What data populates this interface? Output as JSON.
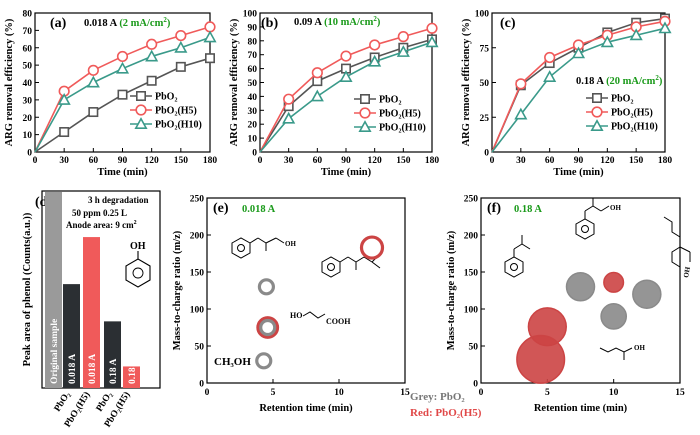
{
  "colors": {
    "pbo2": "#555555",
    "h5": "#f05a5a",
    "h10": "#3a9a8a",
    "accent_green": "#1a9a1a",
    "bar_original": "#9a9a9a",
    "bar_dark": "#2b2f33",
    "bar_red": "#f05a5a",
    "circle_grey": "#8a8a8a",
    "circle_red": "#cc4444"
  },
  "chart_data": [
    {
      "id": "a",
      "type": "line",
      "panel_label": "(a)",
      "condition": {
        "current": "0.018 A",
        "density": "(2 mA/cm",
        "sup": "2",
        "close": ")"
      },
      "xlabel": "Time (min)",
      "ylabel": "ARG removal efficiency (%)",
      "xlim": [
        0,
        180
      ],
      "ylim": [
        0,
        80
      ],
      "xticks": [
        0,
        30,
        60,
        90,
        120,
        150,
        180
      ],
      "yticks": [
        0,
        10,
        20,
        30,
        40,
        50,
        60,
        70,
        80
      ],
      "legend_position": "lower-right",
      "series": [
        {
          "name": "PbO₂",
          "marker": "square",
          "color": "#555555",
          "x": [
            0,
            30,
            60,
            90,
            120,
            150,
            180
          ],
          "values": [
            0,
            11.5,
            23,
            33,
            41,
            49,
            54
          ]
        },
        {
          "name": "PbO₂(H5)",
          "marker": "circle",
          "color": "#f05a5a",
          "x": [
            0,
            30,
            60,
            90,
            120,
            150,
            180
          ],
          "values": [
            0,
            35,
            47,
            55,
            62,
            67,
            72
          ]
        },
        {
          "name": "PbO₂(H10)",
          "marker": "triangle",
          "color": "#3a9a8a",
          "x": [
            0,
            30,
            60,
            90,
            120,
            150,
            180
          ],
          "values": [
            0,
            30,
            40,
            48,
            55,
            60,
            66
          ]
        }
      ]
    },
    {
      "id": "b",
      "type": "line",
      "panel_label": "(b)",
      "condition": {
        "current": "0.09 A",
        "density": "(10 mA/cm",
        "sup": "2",
        "close": ")"
      },
      "xlabel": "Time (min)",
      "ylabel": "ARG removal efficiency (%)",
      "xlim": [
        0,
        180
      ],
      "ylim": [
        0,
        100
      ],
      "xticks": [
        0,
        30,
        60,
        90,
        120,
        150,
        180
      ],
      "yticks": [
        0,
        10,
        20,
        30,
        40,
        50,
        60,
        70,
        80,
        90,
        100
      ],
      "legend_position": "lower-right",
      "series": [
        {
          "name": "PbO₂",
          "marker": "square",
          "color": "#555555",
          "x": [
            0,
            30,
            60,
            90,
            120,
            150,
            180
          ],
          "values": [
            0,
            33,
            51,
            60,
            68,
            75,
            81
          ]
        },
        {
          "name": "PbO₂(H5)",
          "marker": "circle",
          "color": "#f05a5a",
          "x": [
            0,
            30,
            60,
            90,
            120,
            150,
            180
          ],
          "values": [
            0,
            38,
            57,
            69,
            77,
            83,
            89
          ]
        },
        {
          "name": "PbO₂(H10)",
          "marker": "triangle",
          "color": "#3a9a8a",
          "x": [
            0,
            30,
            60,
            90,
            120,
            150,
            180
          ],
          "values": [
            0,
            24,
            40,
            54,
            65,
            72,
            79
          ]
        }
      ]
    },
    {
      "id": "c",
      "type": "line",
      "panel_label": "(c)",
      "condition": {
        "current": "0.18 A",
        "density": "(20 mA/cm",
        "sup": "2",
        "close": ")"
      },
      "xlabel": "Time (min)",
      "ylabel": "ARG removal efficiency (%)",
      "xlim": [
        0,
        180
      ],
      "ylim": [
        0,
        100
      ],
      "xticks": [
        0,
        30,
        60,
        90,
        120,
        150,
        180
      ],
      "yticks": [
        0,
        25,
        50,
        75,
        100
      ],
      "legend_position": "lower-right",
      "series": [
        {
          "name": "PbO₂",
          "marker": "square",
          "color": "#555555",
          "x": [
            0,
            30,
            60,
            90,
            120,
            150,
            180
          ],
          "values": [
            0,
            48,
            64,
            75,
            86,
            93,
            96
          ]
        },
        {
          "name": "PbO₂(H5)",
          "marker": "circle",
          "color": "#f05a5a",
          "x": [
            0,
            30,
            60,
            90,
            120,
            150,
            180
          ],
          "values": [
            0,
            49,
            68,
            77,
            84,
            90,
            94
          ]
        },
        {
          "name": "PbO₂(H10)",
          "marker": "triangle",
          "color": "#3a9a8a",
          "x": [
            0,
            30,
            60,
            90,
            120,
            150,
            180
          ],
          "values": [
            0,
            27,
            54,
            71,
            79,
            84,
            89
          ]
        }
      ]
    },
    {
      "id": "d",
      "type": "bar",
      "panel_label": "(d)",
      "ylabel": "Peak area of phenol (Counts(a.u.))",
      "annotations": {
        "line1": "3 h  degradation",
        "line2": "50 ppm   0.25 L",
        "line3": "Anode area: 9 cm",
        "line3_sup": "2",
        "structure_label": "OH"
      },
      "x_labels": [
        "PbO₂",
        "PbO₂(H5)",
        "PbO₂",
        "PbO₂(H5)"
      ],
      "bars": [
        {
          "label": "Original sample",
          "value": 100,
          "color": "#9a9a9a"
        },
        {
          "label": "0.018 A",
          "value": 53,
          "color": "#2b2f33"
        },
        {
          "label": "0.018 A",
          "value": 77,
          "color": "#f05a5a"
        },
        {
          "label": "0.18 A",
          "value": 34,
          "color": "#2b2f33"
        },
        {
          "label": "0.18 A",
          "value": 11,
          "color": "#f05a5a"
        }
      ]
    },
    {
      "id": "e",
      "type": "scatter",
      "panel_label": "(e)",
      "condition": {
        "current": "0.018 A"
      },
      "xlabel": "Retention time (min)",
      "ylabel": "Mass-to-charge ratio (m/z)",
      "xlim": [
        0,
        15
      ],
      "ylim": [
        0,
        250
      ],
      "xticks": [
        0,
        5,
        10,
        15
      ],
      "yticks": [
        0,
        50,
        100,
        150,
        200,
        250
      ],
      "compound_labels": [
        "OH",
        "HO",
        "COOH",
        "CH₃OH"
      ],
      "points": [
        {
          "group": "grey",
          "x": 4.5,
          "y": 130,
          "size": 1.0,
          "filled": false
        },
        {
          "group": "red",
          "x": 12.5,
          "y": 183,
          "size": 1.5,
          "filled": false
        },
        {
          "group": "red",
          "x": 4.6,
          "y": 75,
          "size": 1.4,
          "filled": false
        },
        {
          "group": "grey",
          "x": 4.6,
          "y": 75,
          "size": 1.0,
          "filled": false
        },
        {
          "group": "grey",
          "x": 4.3,
          "y": 30,
          "size": 1.0,
          "filled": false
        }
      ]
    },
    {
      "id": "f",
      "type": "scatter",
      "panel_label": "(f)",
      "condition": {
        "current": "0.18 A"
      },
      "xlabel": "Retention time (min)",
      "ylabel": "Mass-to-charge ratio (m/z)",
      "xlim": [
        0,
        15
      ],
      "ylim": [
        0,
        250
      ],
      "xticks": [
        0,
        5,
        10,
        15
      ],
      "yticks": [
        0,
        50,
        100,
        150,
        200,
        250
      ],
      "compound_labels": [
        "OH",
        "OH",
        "OH"
      ],
      "points": [
        {
          "group": "grey",
          "x": 7.5,
          "y": 130,
          "size": 2.0,
          "filled": true
        },
        {
          "group": "red",
          "x": 10.0,
          "y": 136,
          "size": 1.4,
          "filled": true
        },
        {
          "group": "grey",
          "x": 12.5,
          "y": 120,
          "size": 2.0,
          "filled": true
        },
        {
          "group": "grey",
          "x": 10.0,
          "y": 90,
          "size": 1.8,
          "filled": true
        },
        {
          "group": "red",
          "x": 5.0,
          "y": 76,
          "size": 2.7,
          "filled": true
        },
        {
          "group": "red",
          "x": 4.5,
          "y": 32,
          "size": 3.4,
          "filled": true
        }
      ]
    }
  ],
  "scatter_legend": {
    "grey": "Grey: PbO₂",
    "red": "Red: PbO₂(H5)"
  }
}
